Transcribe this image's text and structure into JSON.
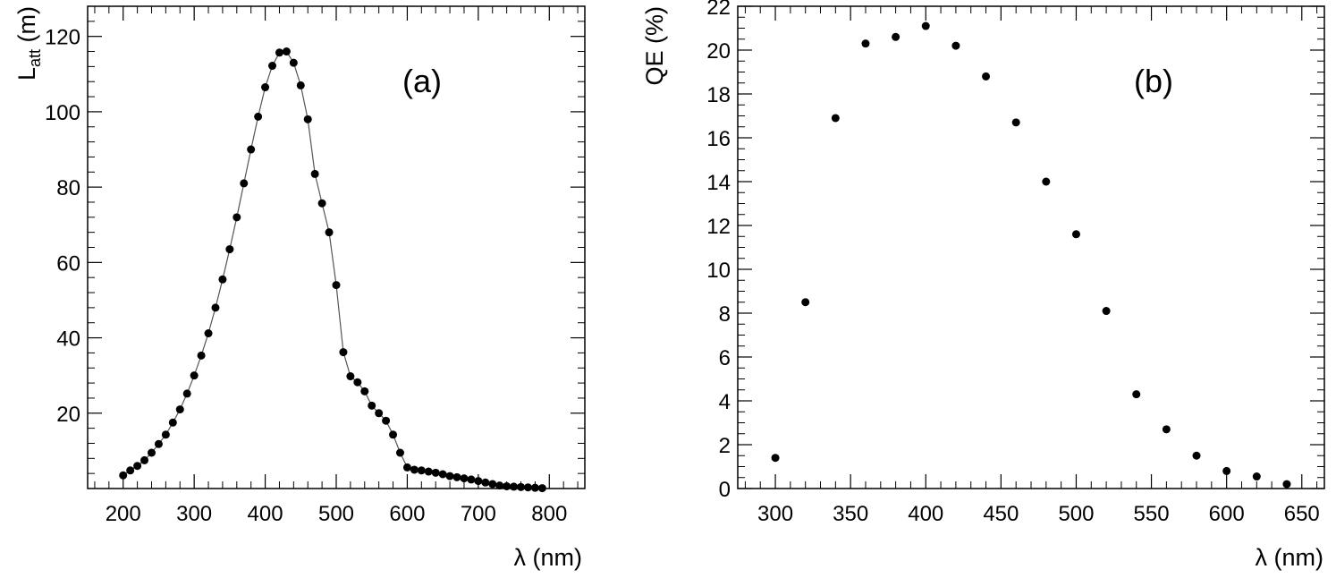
{
  "chart_data": [
    {
      "type": "line",
      "panel_label": "(a)",
      "title": "",
      "xlabel": "λ (nm)",
      "ylabel_main": "L",
      "ylabel_sub": "att",
      "ylabel_unit": " (m)",
      "xlim": [
        150,
        850
      ],
      "ylim": [
        0,
        128
      ],
      "x_ticks": [
        200,
        300,
        400,
        500,
        600,
        700,
        800
      ],
      "y_ticks": [
        20,
        40,
        60,
        80,
        100,
        120
      ],
      "grid": false,
      "series": [
        {
          "x": [
            200,
            210,
            220,
            230,
            240,
            250,
            260,
            270,
            280,
            290,
            300,
            310,
            320,
            330,
            340,
            350,
            360,
            370,
            380,
            390,
            400,
            410,
            420,
            430,
            440,
            450,
            460,
            470,
            480,
            490,
            500,
            510,
            520,
            530,
            540,
            550,
            560,
            570,
            580,
            590,
            600,
            610,
            620,
            630,
            640,
            650,
            660,
            670,
            680,
            690,
            700,
            710,
            720,
            730,
            740,
            750,
            760,
            770,
            780,
            790
          ],
          "y": [
            3.5,
            4.8,
            6.0,
            7.5,
            9.5,
            11.8,
            14.3,
            17.5,
            21.0,
            25.2,
            30.0,
            35.3,
            41.2,
            48.0,
            55.5,
            63.5,
            72.0,
            81.0,
            90.0,
            98.7,
            106.5,
            112.2,
            115.7,
            116.0,
            113.0,
            107.0,
            98.0,
            83.5,
            75.7,
            68.0,
            54.0,
            36.2,
            29.8,
            28.2,
            25.8,
            22.0,
            20.0,
            18.0,
            14.3,
            9.5,
            5.6,
            5.0,
            4.8,
            4.5,
            4.2,
            3.8,
            3.3,
            3.0,
            2.7,
            2.4,
            2.0,
            1.6,
            1.2,
            0.8,
            0.6,
            0.5,
            0.4,
            0.3,
            0.2,
            0.1
          ]
        }
      ]
    },
    {
      "type": "scatter",
      "panel_label": "(b)",
      "title": "",
      "xlabel": "λ (nm)",
      "ylabel": "QE (%)",
      "xlim": [
        275,
        665
      ],
      "ylim": [
        0,
        22
      ],
      "x_ticks": [
        300,
        350,
        400,
        450,
        500,
        550,
        600,
        650
      ],
      "y_ticks": [
        0,
        2,
        4,
        6,
        8,
        10,
        12,
        14,
        16,
        18,
        20,
        22
      ],
      "grid": false,
      "series": [
        {
          "x": [
            300,
            320,
            340,
            360,
            380,
            400,
            420,
            440,
            460,
            480,
            500,
            520,
            540,
            560,
            580,
            600,
            620,
            640
          ],
          "y": [
            1.4,
            8.5,
            16.9,
            20.3,
            20.6,
            21.1,
            20.2,
            18.8,
            16.7,
            14.0,
            11.6,
            8.1,
            4.3,
            2.7,
            1.5,
            0.8,
            0.55,
            0.2
          ]
        }
      ]
    }
  ]
}
